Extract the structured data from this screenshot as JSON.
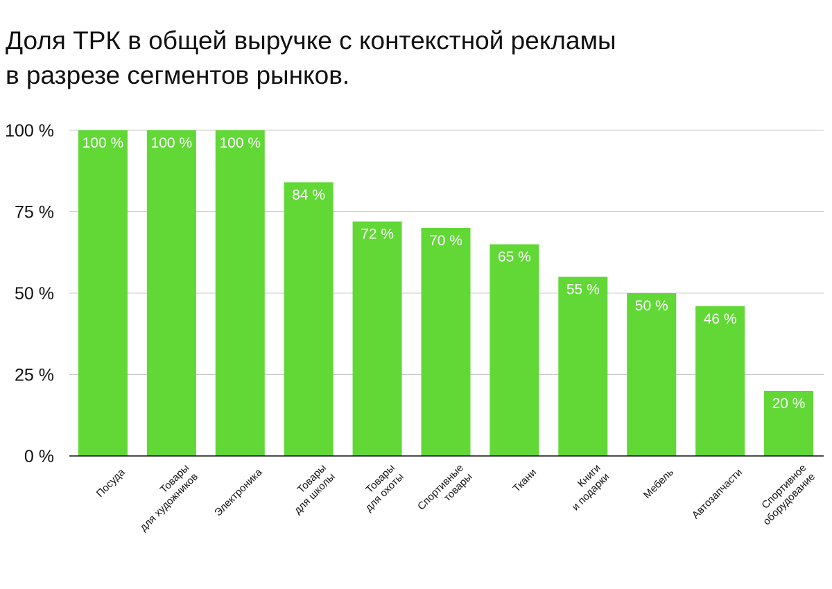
{
  "title_lines": [
    "Доля ТРК в общей выручке с контекстной рекламы",
    "в разрезе сегментов рынков."
  ],
  "colors": {
    "bar": "#61d836",
    "grid": "#c8c8c8",
    "axis": "#111111",
    "label_inside": "#ffffff",
    "text": "#111111"
  },
  "chart_data": {
    "type": "bar",
    "title": "Доля ТРК в общей выручке с контекстной рекламы в разрезе сегментов рынков.",
    "xlabel": "",
    "ylabel": "",
    "ylim": [
      0,
      100
    ],
    "yticks": [
      0,
      25,
      50,
      75,
      100
    ],
    "ytick_labels": [
      "0 %",
      "25 %",
      "50 %",
      "75 %",
      "100 %"
    ],
    "grid": true,
    "categories": [
      [
        "Посуда"
      ],
      [
        "Товары",
        "для художников"
      ],
      [
        "Электроника"
      ],
      [
        "Товары",
        "для школы"
      ],
      [
        "Товары",
        "для охоты"
      ],
      [
        "Спортивные",
        "товары"
      ],
      [
        "Ткани"
      ],
      [
        "Книги",
        "и подарки"
      ],
      [
        "Мебель"
      ],
      [
        "Автозапчасти"
      ],
      [
        "Спортивное",
        "оборудование"
      ]
    ],
    "values": [
      100,
      100,
      100,
      84,
      72,
      70,
      65,
      55,
      50,
      46,
      20
    ],
    "value_labels": [
      "100 %",
      "100 %",
      "100 %",
      "84 %",
      "72 %",
      "70 %",
      "65 %",
      "55 %",
      "50 %",
      "46 %",
      "20 %"
    ]
  }
}
